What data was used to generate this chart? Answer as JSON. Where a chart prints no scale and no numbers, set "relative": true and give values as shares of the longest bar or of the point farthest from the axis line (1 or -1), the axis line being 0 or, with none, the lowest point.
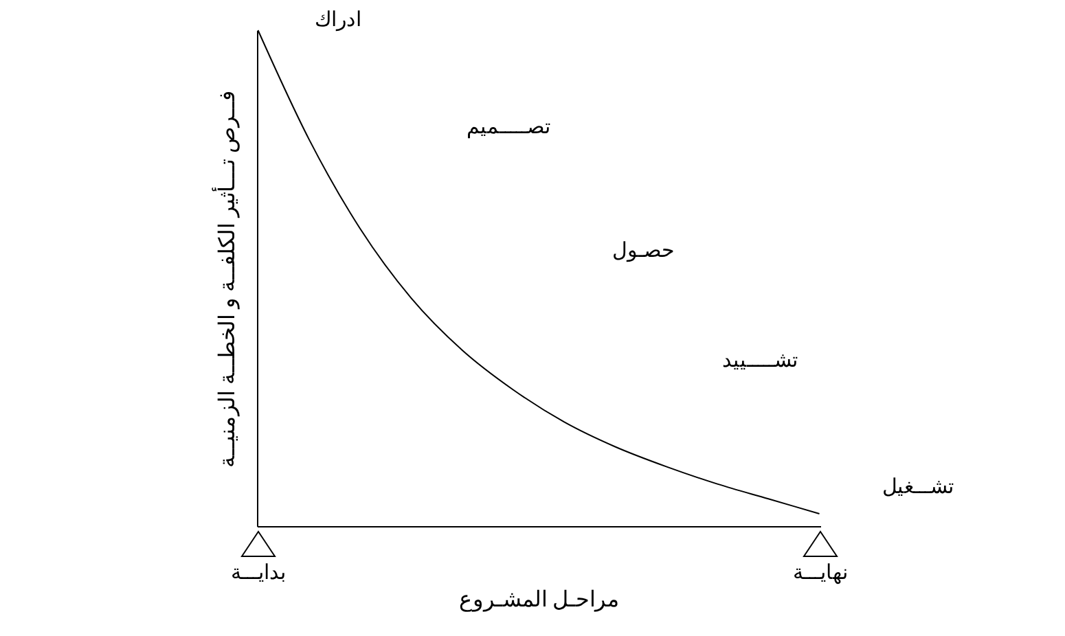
{
  "chart_data": {
    "type": "line",
    "relative": true,
    "categories": [
      "بدايـــة",
      null,
      null,
      null,
      null,
      null,
      null,
      null,
      null,
      null,
      null,
      "نهايـــة"
    ],
    "values": [
      1.0,
      0.78,
      0.6,
      0.46,
      0.355,
      0.275,
      0.21,
      0.16,
      0.12,
      0.085,
      0.055,
      0.025
    ],
    "color": "#000000",
    "xlabel": "مراحـل المشـروع",
    "ylabel": "فــرص تـــأثير الكلفــة و الخطــة الزمنيــة",
    "annotations": [
      "ادراك",
      "تصـــــميم",
      "حصـول",
      "تشـــــييد",
      "تشـــغيل"
    ]
  }
}
